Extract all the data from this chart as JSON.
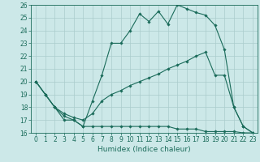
{
  "background_color": "#cce8e8",
  "grid_color": "#aacccc",
  "line_color": "#1a6b5a",
  "xlabel": "Humidex (Indice chaleur)",
  "ylim": [
    16,
    26
  ],
  "yticks": [
    16,
    17,
    18,
    19,
    20,
    21,
    22,
    23,
    24,
    25,
    26
  ],
  "x_ticks": [
    0,
    1,
    2,
    3,
    4,
    5,
    6,
    7,
    8,
    9,
    10,
    11,
    12,
    13,
    14,
    15,
    16,
    17,
    18,
    19,
    20,
    21,
    22,
    23
  ],
  "curve1_x": [
    0,
    1,
    2,
    3,
    4,
    5,
    6,
    7,
    8,
    9,
    10,
    11,
    12,
    13,
    14,
    15,
    16,
    17,
    18,
    19,
    20,
    21,
    22,
    23
  ],
  "curve1_y": [
    20.0,
    19.0,
    18.0,
    17.0,
    17.0,
    16.5,
    18.5,
    20.5,
    23.0,
    23.0,
    24.0,
    25.3,
    24.7,
    25.5,
    24.5,
    26.0,
    25.7,
    25.4,
    25.2,
    24.4,
    22.5,
    18.0,
    16.5,
    16.0
  ],
  "curve2_x": [
    0,
    1,
    2,
    3,
    4,
    5,
    6,
    7,
    8,
    9,
    10,
    11,
    12,
    13,
    14,
    15,
    16,
    17,
    18,
    19,
    20,
    21,
    22,
    23
  ],
  "curve2_y": [
    20.0,
    19.0,
    18.0,
    17.3,
    17.0,
    16.5,
    16.5,
    16.5,
    16.5,
    16.5,
    16.5,
    16.5,
    16.5,
    16.5,
    16.5,
    16.3,
    16.3,
    16.3,
    16.1,
    16.1,
    16.1,
    16.1,
    16.0,
    16.0
  ],
  "curve3_x": [
    0,
    1,
    2,
    3,
    4,
    5,
    6,
    7,
    8,
    9,
    10,
    11,
    12,
    13,
    14,
    15,
    16,
    17,
    18,
    19,
    20,
    21,
    22,
    23
  ],
  "curve3_y": [
    20.0,
    19.0,
    18.0,
    17.5,
    17.2,
    17.0,
    17.5,
    18.5,
    19.0,
    19.3,
    19.7,
    20.0,
    20.3,
    20.6,
    21.0,
    21.3,
    21.6,
    22.0,
    22.3,
    20.5,
    20.5,
    18.0,
    16.5,
    16.0
  ],
  "tick_fontsize": 5.5,
  "xlabel_fontsize": 6.5
}
